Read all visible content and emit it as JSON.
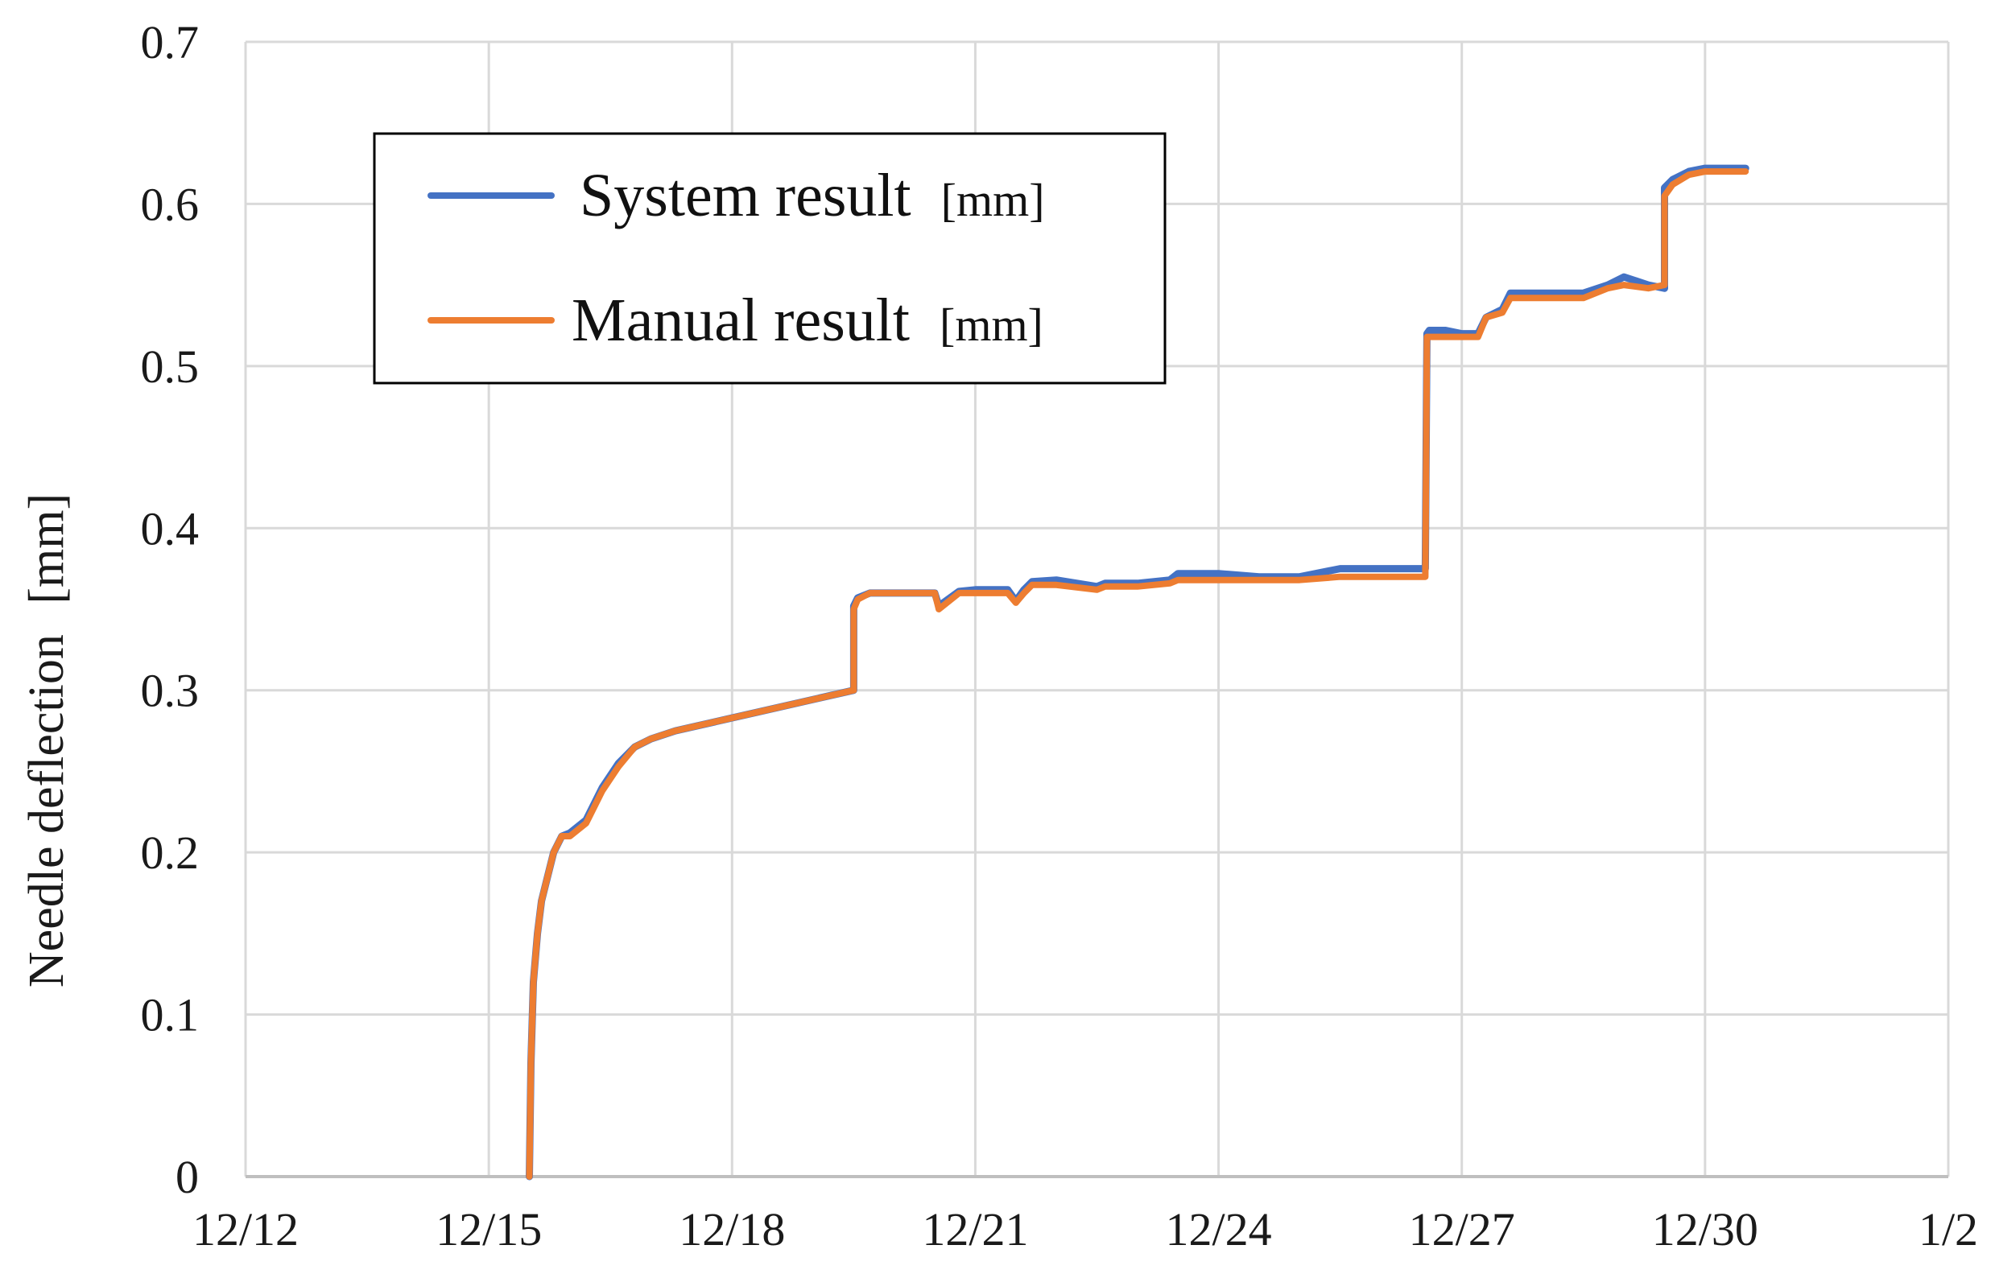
{
  "chart_data": {
    "type": "line",
    "ylabel": "Needle deflection",
    "ylabel_unit": "[mm]",
    "x_tick_labels": [
      "12/12",
      "12/15",
      "12/18",
      "12/21",
      "12/24",
      "12/27",
      "12/30",
      "1/2"
    ],
    "x_ticks_days": [
      0,
      3,
      6,
      9,
      12,
      15,
      18,
      21
    ],
    "xlim_days": [
      0,
      21
    ],
    "x_origin_date": "12/12",
    "ylim": [
      0,
      0.7
    ],
    "y_ticks": [
      0,
      0.1,
      0.2,
      0.3,
      0.4,
      0.5,
      0.6,
      0.7
    ],
    "y_tick_labels": [
      "0",
      "0.1",
      "0.2",
      "0.3",
      "0.4",
      "0.5",
      "0.6",
      "0.7"
    ],
    "grid": true,
    "legend_position": "top-left",
    "series": [
      {
        "name": "System result",
        "unit": "[mm]",
        "color": "#4472c4",
        "x": [
          3.5,
          3.52,
          3.55,
          3.6,
          3.65,
          3.7,
          3.8,
          3.9,
          4.0,
          4.2,
          4.4,
          4.6,
          4.8,
          5.0,
          5.3,
          7.5,
          7.5,
          7.55,
          7.7,
          8.0,
          8.3,
          8.5,
          8.55,
          8.8,
          9.0,
          9.4,
          9.5,
          9.6,
          9.7,
          10.0,
          10.5,
          10.6,
          11.0,
          11.4,
          11.5,
          12.0,
          12.5,
          13.0,
          13.5,
          14.0,
          14.55,
          14.57,
          14.6,
          14.8,
          15.0,
          15.2,
          15.3,
          15.5,
          15.6,
          16.0,
          16.5,
          16.8,
          17.0,
          17.3,
          17.5,
          17.5,
          17.6,
          17.8,
          18.0,
          18.5
        ],
        "y": [
          0.0,
          0.07,
          0.12,
          0.15,
          0.17,
          0.18,
          0.2,
          0.21,
          0.212,
          0.22,
          0.24,
          0.255,
          0.265,
          0.27,
          0.275,
          0.3,
          0.352,
          0.357,
          0.36,
          0.36,
          0.36,
          0.36,
          0.352,
          0.361,
          0.362,
          0.362,
          0.355,
          0.362,
          0.367,
          0.368,
          0.364,
          0.366,
          0.366,
          0.368,
          0.372,
          0.372,
          0.37,
          0.37,
          0.375,
          0.375,
          0.375,
          0.52,
          0.522,
          0.522,
          0.52,
          0.52,
          0.53,
          0.535,
          0.545,
          0.545,
          0.545,
          0.55,
          0.555,
          0.55,
          0.548,
          0.61,
          0.615,
          0.62,
          0.622,
          0.622
        ]
      },
      {
        "name": "Manual result",
        "unit": "[mm]",
        "color": "#ed7d31",
        "x": [
          3.5,
          3.52,
          3.55,
          3.6,
          3.65,
          3.7,
          3.8,
          3.9,
          4.0,
          4.2,
          4.4,
          4.6,
          4.8,
          5.0,
          5.3,
          7.5,
          7.5,
          7.55,
          7.7,
          8.0,
          8.3,
          8.5,
          8.55,
          8.8,
          9.0,
          9.4,
          9.5,
          9.6,
          9.7,
          10.0,
          10.5,
          10.6,
          11.0,
          11.4,
          11.5,
          12.0,
          12.5,
          13.0,
          13.5,
          14.0,
          14.55,
          14.57,
          14.6,
          14.8,
          15.0,
          15.2,
          15.3,
          15.5,
          15.6,
          16.0,
          16.5,
          16.8,
          17.0,
          17.3,
          17.5,
          17.5,
          17.6,
          17.8,
          18.0,
          18.5
        ],
        "y": [
          0.0,
          0.07,
          0.12,
          0.15,
          0.17,
          0.18,
          0.2,
          0.21,
          0.21,
          0.218,
          0.238,
          0.253,
          0.265,
          0.27,
          0.275,
          0.3,
          0.35,
          0.356,
          0.36,
          0.36,
          0.36,
          0.36,
          0.35,
          0.36,
          0.36,
          0.36,
          0.354,
          0.36,
          0.365,
          0.365,
          0.362,
          0.364,
          0.364,
          0.366,
          0.368,
          0.368,
          0.368,
          0.368,
          0.37,
          0.37,
          0.37,
          0.518,
          0.518,
          0.518,
          0.518,
          0.518,
          0.53,
          0.533,
          0.542,
          0.542,
          0.542,
          0.548,
          0.55,
          0.548,
          0.55,
          0.605,
          0.612,
          0.618,
          0.62,
          0.62
        ]
      }
    ]
  }
}
